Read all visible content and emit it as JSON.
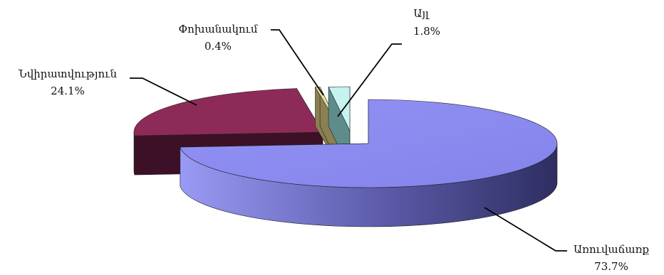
{
  "chart_data": {
    "type": "pie",
    "title": "",
    "style": "3d-exploded",
    "legend": "none",
    "slices": [
      {
        "name": "Առուվաճառք",
        "value": 73.7,
        "label": "73.7%",
        "color": "#8C8CF2",
        "side_color": "#3A3A78"
      },
      {
        "name": "Նվիրատվություն",
        "value": 24.1,
        "label": "24.1%",
        "color": "#8E2A57",
        "side_color": "#3C1026"
      },
      {
        "name": "Փոխանակում",
        "value": 0.4,
        "label": "0.4%",
        "color": "#E6E0A0",
        "side_color": "#8A8050"
      },
      {
        "name": "Այլ",
        "value": 1.8,
        "label": "1.8%",
        "color": "#C6F2F0",
        "side_color": "#5E8C8A"
      }
    ],
    "gap_slice_color": "#7A7A5A"
  }
}
